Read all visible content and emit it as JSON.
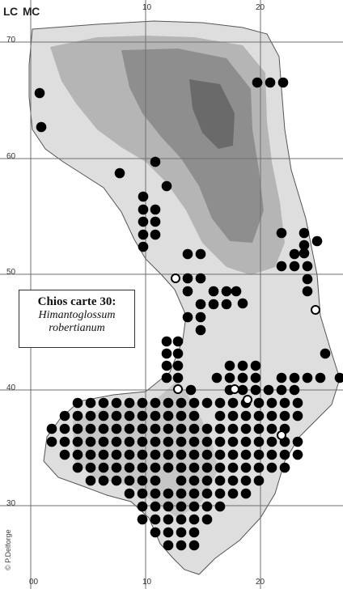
{
  "zone_labels": {
    "left": "LC",
    "right": "MC"
  },
  "grid_ticks": {
    "top": [
      "10",
      "20"
    ],
    "left": [
      "70",
      "60",
      "50",
      "40",
      "30"
    ],
    "bottom": [
      "00",
      "10",
      "20"
    ]
  },
  "legend": {
    "title": "Chios carte 30:",
    "species_line1": "Himantoglossum",
    "species_line2": "robertianum"
  },
  "credit": "© P.Delforge",
  "colors": {
    "sea": "#ffffff",
    "land_low": "#dedede",
    "land_mid": "#b5b5b5",
    "land_high": "#8e8e8e",
    "land_peak": "#6a6a6a",
    "grid": "#6f6f6f",
    "record_dot": "#000000",
    "open_dot": "#ffffff"
  },
  "records": {
    "symbol": "filled-circle",
    "cells": [
      [
        49,
        115
      ],
      [
        51,
        157
      ],
      [
        148,
        214
      ],
      [
        192,
        200
      ],
      [
        206,
        230
      ],
      [
        177,
        243
      ],
      [
        177,
        259
      ],
      [
        177,
        274
      ],
      [
        177,
        290
      ],
      [
        177,
        305
      ],
      [
        192,
        259
      ],
      [
        192,
        274
      ],
      [
        192,
        290
      ],
      [
        232,
        314
      ],
      [
        248,
        314
      ],
      [
        232,
        344
      ],
      [
        248,
        344
      ],
      [
        232,
        360
      ],
      [
        264,
        360
      ],
      [
        280,
        360
      ],
      [
        292,
        360
      ],
      [
        300,
        375
      ],
      [
        248,
        376
      ],
      [
        264,
        376
      ],
      [
        280,
        376
      ],
      [
        248,
        392
      ],
      [
        232,
        392
      ],
      [
        248,
        408
      ],
      [
        206,
        422
      ],
      [
        220,
        422
      ],
      [
        206,
        437
      ],
      [
        220,
        437
      ],
      [
        206,
        452
      ],
      [
        220,
        452
      ],
      [
        206,
        467
      ],
      [
        220,
        467
      ],
      [
        236,
        482
      ],
      [
        268,
        467
      ],
      [
        284,
        467
      ],
      [
        300,
        467
      ],
      [
        316,
        467
      ],
      [
        284,
        452
      ],
      [
        300,
        452
      ],
      [
        316,
        452
      ],
      [
        284,
        482
      ],
      [
        300,
        482
      ],
      [
        316,
        482
      ],
      [
        332,
        482
      ],
      [
        348,
        482
      ],
      [
        364,
        482
      ],
      [
        380,
        467
      ],
      [
        396,
        467
      ],
      [
        348,
        467
      ],
      [
        364,
        467
      ],
      [
        348,
        329
      ],
      [
        364,
        329
      ],
      [
        364,
        314
      ],
      [
        348,
        288
      ],
      [
        376,
        288
      ],
      [
        392,
        298
      ],
      [
        376,
        303
      ],
      [
        376,
        313
      ],
      [
        380,
        329
      ],
      [
        380,
        345
      ],
      [
        380,
        360
      ],
      [
        402,
        437
      ],
      [
        420,
        467
      ],
      [
        318,
        102
      ],
      [
        334,
        102
      ],
      [
        350,
        102
      ]
    ],
    "grid_block": {
      "cols": [
        64,
        80,
        96,
        112,
        128,
        144,
        160,
        176,
        192,
        208,
        224,
        240,
        256,
        272,
        288,
        304,
        320,
        336,
        352,
        368
      ],
      "rows": [
        498,
        514,
        530,
        546,
        562,
        578,
        594,
        610,
        626,
        642,
        658,
        674
      ],
      "cells": [
        "..111111111111111111",
        ".11111111111.1111111",
        "1111111111111111111.",
        "11111111111111111111",
        ".1111111111111111111",
        "..11111111111111111.",
        "...111111.1111111...",
        "......1111111111....",
        ".......1111111......",
        ".......111111.......",
        "........1111........",
        ".........111........"
      ]
    },
    "old_records": [
      [
        217,
        344
      ],
      [
        390,
        383
      ],
      [
        220,
        481
      ],
      [
        290,
        481
      ],
      [
        306,
        494
      ],
      [
        348,
        538
      ]
    ]
  }
}
